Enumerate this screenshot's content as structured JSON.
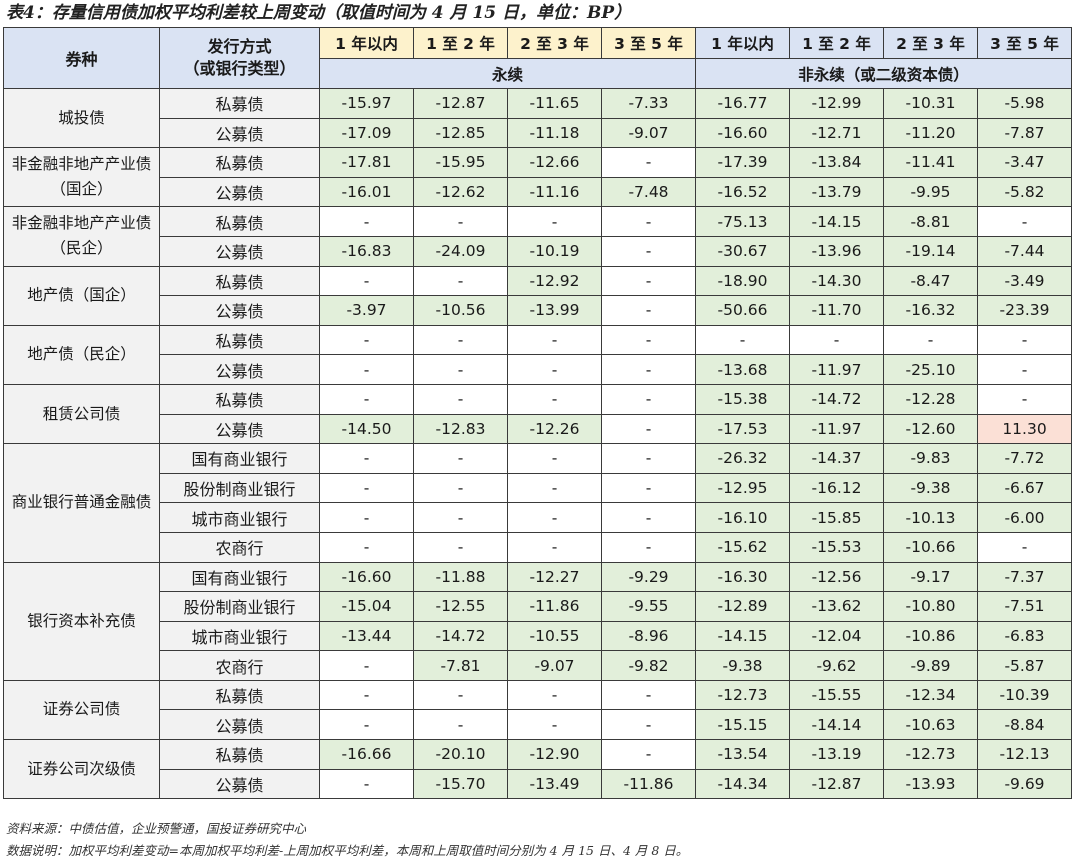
{
  "title": "表4：存量信用债加权平均利差较上周变动（取值时间为 4 月 15 日，单位：BP）",
  "header": {
    "col_category": "券种",
    "col_issue_line1": "发行方式",
    "col_issue_line2": "（或银行类型）",
    "periods": [
      "1 年以内",
      "1 至 2 年",
      "2 至 3 年",
      "3 至 5 年",
      "1 年以内",
      "1 至 2 年",
      "2 至 3 年",
      "3 至 5 年"
    ],
    "group_perpetual": "永续",
    "group_nonperpetual": "非永续（或二级资本债）"
  },
  "groups": [
    {
      "name": "城投债",
      "rows": [
        {
          "sub": "私募债",
          "values": [
            "-15.97",
            "-12.87",
            "-11.65",
            "-7.33",
            "-16.77",
            "-12.99",
            "-10.31",
            "-5.98"
          ]
        },
        {
          "sub": "公募债",
          "values": [
            "-17.09",
            "-12.85",
            "-11.18",
            "-9.07",
            "-16.60",
            "-12.71",
            "-11.20",
            "-7.87"
          ]
        }
      ]
    },
    {
      "name": "非金融非地产产业债（国企）",
      "rows": [
        {
          "sub": "私募债",
          "values": [
            "-17.81",
            "-15.95",
            "-12.66",
            "-",
            "-17.39",
            "-13.84",
            "-11.41",
            "-3.47"
          ]
        },
        {
          "sub": "公募债",
          "values": [
            "-16.01",
            "-12.62",
            "-11.16",
            "-7.48",
            "-16.52",
            "-13.79",
            "-9.95",
            "-5.82"
          ]
        }
      ]
    },
    {
      "name": "非金融非地产产业债（民企）",
      "rows": [
        {
          "sub": "私募债",
          "values": [
            "-",
            "-",
            "-",
            "-",
            "-75.13",
            "-14.15",
            "-8.81",
            "-"
          ]
        },
        {
          "sub": "公募债",
          "values": [
            "-16.83",
            "-24.09",
            "-10.19",
            "-",
            "-30.67",
            "-13.96",
            "-19.14",
            "-7.44"
          ]
        }
      ]
    },
    {
      "name": "地产债（国企）",
      "rows": [
        {
          "sub": "私募债",
          "values": [
            "-",
            "-",
            "-12.92",
            "-",
            "-18.90",
            "-14.30",
            "-8.47",
            "-3.49"
          ]
        },
        {
          "sub": "公募债",
          "values": [
            "-3.97",
            "-10.56",
            "-13.99",
            "-",
            "-50.66",
            "-11.70",
            "-16.32",
            "-23.39"
          ]
        }
      ]
    },
    {
      "name": "地产债（民企）",
      "rows": [
        {
          "sub": "私募债",
          "values": [
            "-",
            "-",
            "-",
            "-",
            "-",
            "-",
            "-",
            "-"
          ]
        },
        {
          "sub": "公募债",
          "values": [
            "-",
            "-",
            "-",
            "-",
            "-13.68",
            "-11.97",
            "-25.10",
            "-"
          ]
        }
      ]
    },
    {
      "name": "租赁公司债",
      "rows": [
        {
          "sub": "私募债",
          "values": [
            "-",
            "-",
            "-",
            "-",
            "-15.38",
            "-14.72",
            "-12.28",
            "-"
          ]
        },
        {
          "sub": "公募债",
          "values": [
            "-14.50",
            "-12.83",
            "-12.26",
            "-",
            "-17.53",
            "-11.97",
            "-12.60",
            "11.30"
          ]
        }
      ]
    },
    {
      "name": "商业银行普通金融债",
      "rows": [
        {
          "sub": "国有商业银行",
          "values": [
            "-",
            "-",
            "-",
            "-",
            "-26.32",
            "-14.37",
            "-9.83",
            "-7.72"
          ]
        },
        {
          "sub": "股份制商业银行",
          "values": [
            "-",
            "-",
            "-",
            "-",
            "-12.95",
            "-16.12",
            "-9.38",
            "-6.67"
          ]
        },
        {
          "sub": "城市商业银行",
          "values": [
            "-",
            "-",
            "-",
            "-",
            "-16.10",
            "-15.85",
            "-10.13",
            "-6.00"
          ]
        },
        {
          "sub": "农商行",
          "values": [
            "-",
            "-",
            "-",
            "-",
            "-15.62",
            "-15.53",
            "-10.66",
            "-"
          ]
        }
      ]
    },
    {
      "name": "银行资本补充债",
      "rows": [
        {
          "sub": "国有商业银行",
          "values": [
            "-16.60",
            "-11.88",
            "-12.27",
            "-9.29",
            "-16.30",
            "-12.56",
            "-9.17",
            "-7.37"
          ]
        },
        {
          "sub": "股份制商业银行",
          "values": [
            "-15.04",
            "-12.55",
            "-11.86",
            "-9.55",
            "-12.89",
            "-13.62",
            "-10.80",
            "-7.51"
          ]
        },
        {
          "sub": "城市商业银行",
          "values": [
            "-13.44",
            "-14.72",
            "-10.55",
            "-8.96",
            "-14.15",
            "-12.04",
            "-10.86",
            "-6.83"
          ]
        },
        {
          "sub": "农商行",
          "values": [
            "-",
            "-7.81",
            "-9.07",
            "-9.82",
            "-9.38",
            "-9.62",
            "-9.89",
            "-5.87"
          ]
        }
      ]
    },
    {
      "name": "证券公司债",
      "rows": [
        {
          "sub": "私募债",
          "values": [
            "-",
            "-",
            "-",
            "-",
            "-12.73",
            "-15.55",
            "-12.34",
            "-10.39"
          ]
        },
        {
          "sub": "公募债",
          "values": [
            "-",
            "-",
            "-",
            "-",
            "-15.15",
            "-14.14",
            "-10.63",
            "-8.84"
          ]
        }
      ]
    },
    {
      "name": "证券公司次级债",
      "rows": [
        {
          "sub": "私募债",
          "values": [
            "-16.66",
            "-20.10",
            "-12.90",
            "-",
            "-13.54",
            "-13.19",
            "-12.73",
            "-12.13"
          ]
        },
        {
          "sub": "公募债",
          "values": [
            "-",
            "-15.70",
            "-13.49",
            "-11.86",
            "-14.34",
            "-12.87",
            "-13.93",
            "-9.69"
          ]
        }
      ]
    }
  ],
  "notes": {
    "source": "资料来源：中债估值，企业预警通，国投证券研究中心",
    "explain": "数据说明：加权平均利差变动=本周加权平均利差-上周加权平均利差，本周和上周取值时间分别为 4 月 15 日、4 月 8 日。"
  },
  "colors": {
    "decrease": "#e2efda",
    "increase": "#fbe0d6",
    "header_blue": "#dae3f3",
    "header_yellow": "#fdf2cc",
    "label_gray": "#f2f2f2"
  }
}
